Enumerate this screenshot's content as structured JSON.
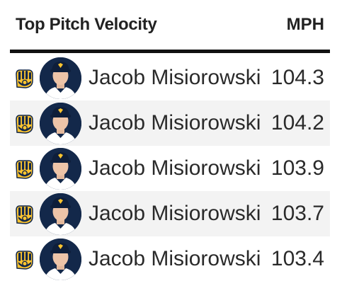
{
  "header": {
    "title": "Top Pitch Velocity",
    "unit_label": "MPH"
  },
  "colors": {
    "navy": "#13284a",
    "gold": "#ffc52f",
    "alt_row": "#f3f3f3",
    "rule": "#111111"
  },
  "rows": [
    {
      "team_icon": "brewers-glove-logo-icon",
      "player": "Jacob Misiorowski",
      "mph": "104.3"
    },
    {
      "team_icon": "brewers-glove-logo-icon",
      "player": "Jacob Misiorowski",
      "mph": "104.2"
    },
    {
      "team_icon": "brewers-glove-logo-icon",
      "player": "Jacob Misiorowski",
      "mph": "103.9"
    },
    {
      "team_icon": "brewers-glove-logo-icon",
      "player": "Jacob Misiorowski",
      "mph": "103.7"
    },
    {
      "team_icon": "brewers-glove-logo-icon",
      "player": "Jacob Misiorowski",
      "mph": "103.4"
    }
  ]
}
